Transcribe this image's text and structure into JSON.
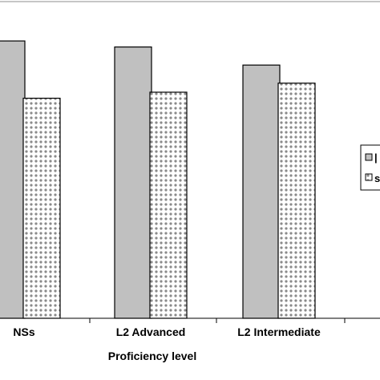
{
  "chart_data": {
    "type": "bar",
    "xlabel": "Proficiency level",
    "categories": [
      "NSs",
      "L2 Advanced",
      "L2 Intermediate"
    ],
    "series": [
      {
        "name": "",
        "values": [
          92,
          90,
          84
        ],
        "color": "#c0c0c0",
        "pattern": "solid"
      },
      {
        "name": "",
        "values": [
          73,
          75,
          78
        ],
        "color": "#ffffff",
        "pattern": "dotted"
      }
    ],
    "legend": {
      "placement": "right",
      "visible_labels": [
        "|",
        "s"
      ]
    },
    "ylim": [
      0,
      100
    ],
    "grid": false
  }
}
